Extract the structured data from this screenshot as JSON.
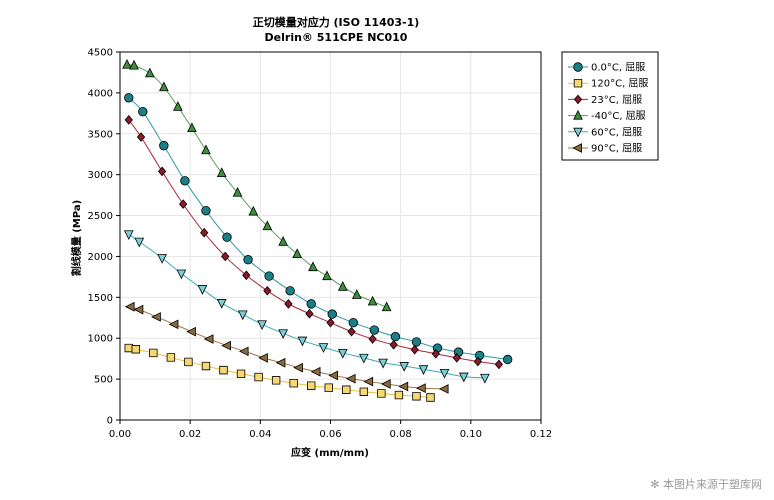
{
  "chart_data": {
    "type": "line",
    "title": "正切模量对应力 (ISO 11403-1)",
    "subtitle": "Delrin® 511CPE NC010",
    "xlabel": "应变 (mm/mm)",
    "ylabel": "割线模量 (MPa)",
    "xlim": [
      0,
      0.12
    ],
    "ylim": [
      0,
      4500
    ],
    "xticks": [
      0,
      0.02,
      0.04,
      0.06,
      0.08,
      0.1,
      0.12
    ],
    "xtick_labels": [
      "0.00",
      "0.02",
      "0.04",
      "0.06",
      "0.08",
      "0.10",
      "0.12"
    ],
    "yticks": [
      0,
      500,
      1000,
      1500,
      2000,
      2500,
      3000,
      3500,
      4000,
      4500
    ],
    "ytick_labels": [
      "0",
      "500",
      "1000",
      "1500",
      "2000",
      "2500",
      "3000",
      "3500",
      "4000",
      "4500"
    ],
    "grid": true,
    "legend_position": "right",
    "series": [
      {
        "name": "0.0°C, 屈服",
        "marker": "circle",
        "color": "#1a7f86",
        "line_color": "#2a9ba3",
        "points": [
          [
            0.0025,
            3940
          ],
          [
            0.0065,
            3770
          ],
          [
            0.0125,
            3355
          ],
          [
            0.0185,
            2925
          ],
          [
            0.0245,
            2560
          ],
          [
            0.0305,
            2235
          ],
          [
            0.0365,
            1960
          ],
          [
            0.0425,
            1760
          ],
          [
            0.0485,
            1580
          ],
          [
            0.0545,
            1420
          ],
          [
            0.0605,
            1295
          ],
          [
            0.0665,
            1190
          ],
          [
            0.0725,
            1100
          ],
          [
            0.0785,
            1020
          ],
          [
            0.0845,
            955
          ],
          [
            0.0905,
            880
          ],
          [
            0.0965,
            830
          ],
          [
            0.1025,
            790
          ],
          [
            0.1105,
            740
          ]
        ]
      },
      {
        "name": "120°C, 屈服",
        "marker": "square",
        "color": "#f7d774",
        "line_color": "#e8c13a",
        "points": [
          [
            0.0025,
            880
          ],
          [
            0.0045,
            865
          ],
          [
            0.0095,
            820
          ],
          [
            0.0145,
            765
          ],
          [
            0.0195,
            710
          ],
          [
            0.0245,
            660
          ],
          [
            0.0295,
            610
          ],
          [
            0.0345,
            565
          ],
          [
            0.0395,
            525
          ],
          [
            0.0445,
            485
          ],
          [
            0.0495,
            450
          ],
          [
            0.0545,
            420
          ],
          [
            0.0595,
            395
          ],
          [
            0.0645,
            370
          ],
          [
            0.0695,
            345
          ],
          [
            0.0745,
            325
          ],
          [
            0.0795,
            305
          ],
          [
            0.0845,
            290
          ],
          [
            0.0885,
            275
          ]
        ]
      },
      {
        "name": "23°C, 屈服",
        "marker": "diamond",
        "color": "#8b1a2b",
        "line_color": "#a8283a",
        "points": [
          [
            0.0025,
            3670
          ],
          [
            0.006,
            3460
          ],
          [
            0.012,
            3040
          ],
          [
            0.018,
            2640
          ],
          [
            0.024,
            2290
          ],
          [
            0.03,
            2000
          ],
          [
            0.036,
            1770
          ],
          [
            0.042,
            1580
          ],
          [
            0.048,
            1420
          ],
          [
            0.054,
            1300
          ],
          [
            0.06,
            1190
          ],
          [
            0.066,
            1080
          ],
          [
            0.072,
            990
          ],
          [
            0.078,
            920
          ],
          [
            0.084,
            860
          ],
          [
            0.09,
            810
          ],
          [
            0.096,
            760
          ],
          [
            0.102,
            715
          ],
          [
            0.108,
            680
          ]
        ]
      },
      {
        "name": "-40°C, 屈服",
        "marker": "triangle-up",
        "color": "#3e8e3e",
        "line_color": "#5aa05a",
        "points": [
          [
            0.002,
            4345
          ],
          [
            0.004,
            4335
          ],
          [
            0.0085,
            4240
          ],
          [
            0.0125,
            4070
          ],
          [
            0.0165,
            3830
          ],
          [
            0.0205,
            3570
          ],
          [
            0.0245,
            3300
          ],
          [
            0.029,
            3020
          ],
          [
            0.0335,
            2780
          ],
          [
            0.038,
            2550
          ],
          [
            0.042,
            2370
          ],
          [
            0.0465,
            2180
          ],
          [
            0.0505,
            2030
          ],
          [
            0.055,
            1870
          ],
          [
            0.059,
            1760
          ],
          [
            0.0635,
            1630
          ],
          [
            0.0675,
            1530
          ],
          [
            0.072,
            1450
          ],
          [
            0.076,
            1380
          ]
        ]
      },
      {
        "name": "60°C, 屈服",
        "marker": "triangle-down",
        "color": "#7ad0d6",
        "line_color": "#3aaab8",
        "points": [
          [
            0.0025,
            2270
          ],
          [
            0.0055,
            2180
          ],
          [
            0.012,
            1980
          ],
          [
            0.0175,
            1790
          ],
          [
            0.0235,
            1600
          ],
          [
            0.029,
            1430
          ],
          [
            0.035,
            1290
          ],
          [
            0.0405,
            1170
          ],
          [
            0.0465,
            1060
          ],
          [
            0.052,
            970
          ],
          [
            0.058,
            890
          ],
          [
            0.0635,
            820
          ],
          [
            0.0695,
            760
          ],
          [
            0.075,
            700
          ],
          [
            0.081,
            660
          ],
          [
            0.0865,
            620
          ],
          [
            0.0925,
            575
          ],
          [
            0.098,
            530
          ],
          [
            0.104,
            515
          ]
        ]
      },
      {
        "name": "90°C, 屈服",
        "marker": "triangle-left",
        "color": "#8a6a3c",
        "line_color": "#a0764a",
        "points": [
          [
            0.003,
            1385
          ],
          [
            0.0055,
            1350
          ],
          [
            0.0105,
            1260
          ],
          [
            0.0155,
            1170
          ],
          [
            0.0205,
            1080
          ],
          [
            0.0255,
            990
          ],
          [
            0.0305,
            910
          ],
          [
            0.0355,
            840
          ],
          [
            0.041,
            760
          ],
          [
            0.046,
            700
          ],
          [
            0.051,
            640
          ],
          [
            0.056,
            590
          ],
          [
            0.061,
            545
          ],
          [
            0.066,
            505
          ],
          [
            0.071,
            470
          ],
          [
            0.076,
            440
          ],
          [
            0.081,
            410
          ],
          [
            0.086,
            390
          ],
          [
            0.0925,
            380
          ]
        ]
      }
    ]
  },
  "watermark": "本图片来源于塑库网",
  "watermark_icon": "asterisk-icon"
}
